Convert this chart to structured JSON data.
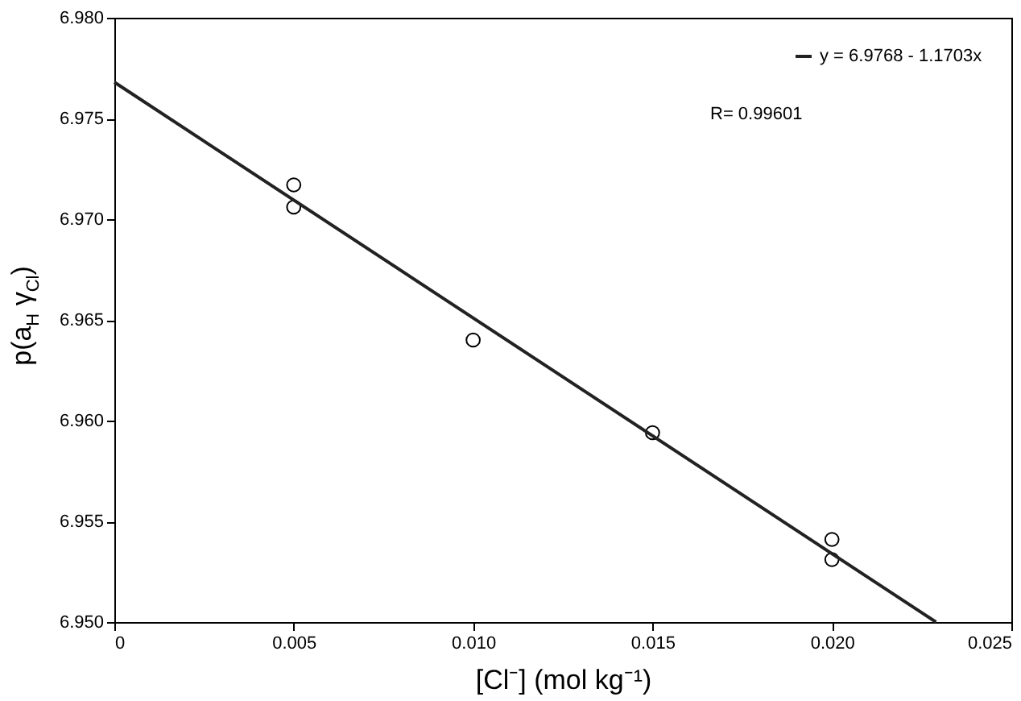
{
  "chart_data": {
    "type": "scatter",
    "xlabel": "[Cl⁻] (mol kg⁻¹)",
    "ylabel": "p(a$_{H}$ γ$_{Cl}$)",
    "xlim": [
      0,
      0.025
    ],
    "ylim": [
      6.95,
      6.98
    ],
    "xticks": [
      0,
      0.005,
      {
        "value": 0.01,
        "label": "0.010"
      },
      0.015,
      {
        "value": 0.02,
        "label": "0.020"
      },
      0.025
    ],
    "yticks": [
      {
        "value": 6.95,
        "label": "6.950"
      },
      6.955,
      {
        "value": 6.96,
        "label": "6.960"
      },
      6.965,
      {
        "value": 6.97,
        "label": "6.970"
      },
      6.975,
      {
        "value": 6.98,
        "label": "6.980"
      }
    ],
    "grid": false,
    "legend": "top right",
    "annotations": [
      "R= 0.99601"
    ],
    "series": [
      {
        "type": "scatter",
        "marker": "circle",
        "color": "#000000",
        "x": [
          0.005,
          0.005,
          0.01,
          0.015,
          0.02,
          0.02
        ],
        "values": [
          6.9717,
          6.9706,
          6.964,
          6.9594,
          6.9541,
          6.9531
        ]
      },
      {
        "type": "line",
        "name": "y = 6.9768 - 1.1703x",
        "color": "#222222",
        "marker": "none",
        "line_style": "solid",
        "x": [
          0,
          0.0229
        ],
        "values": [
          6.9768,
          6.95
        ]
      }
    ]
  }
}
